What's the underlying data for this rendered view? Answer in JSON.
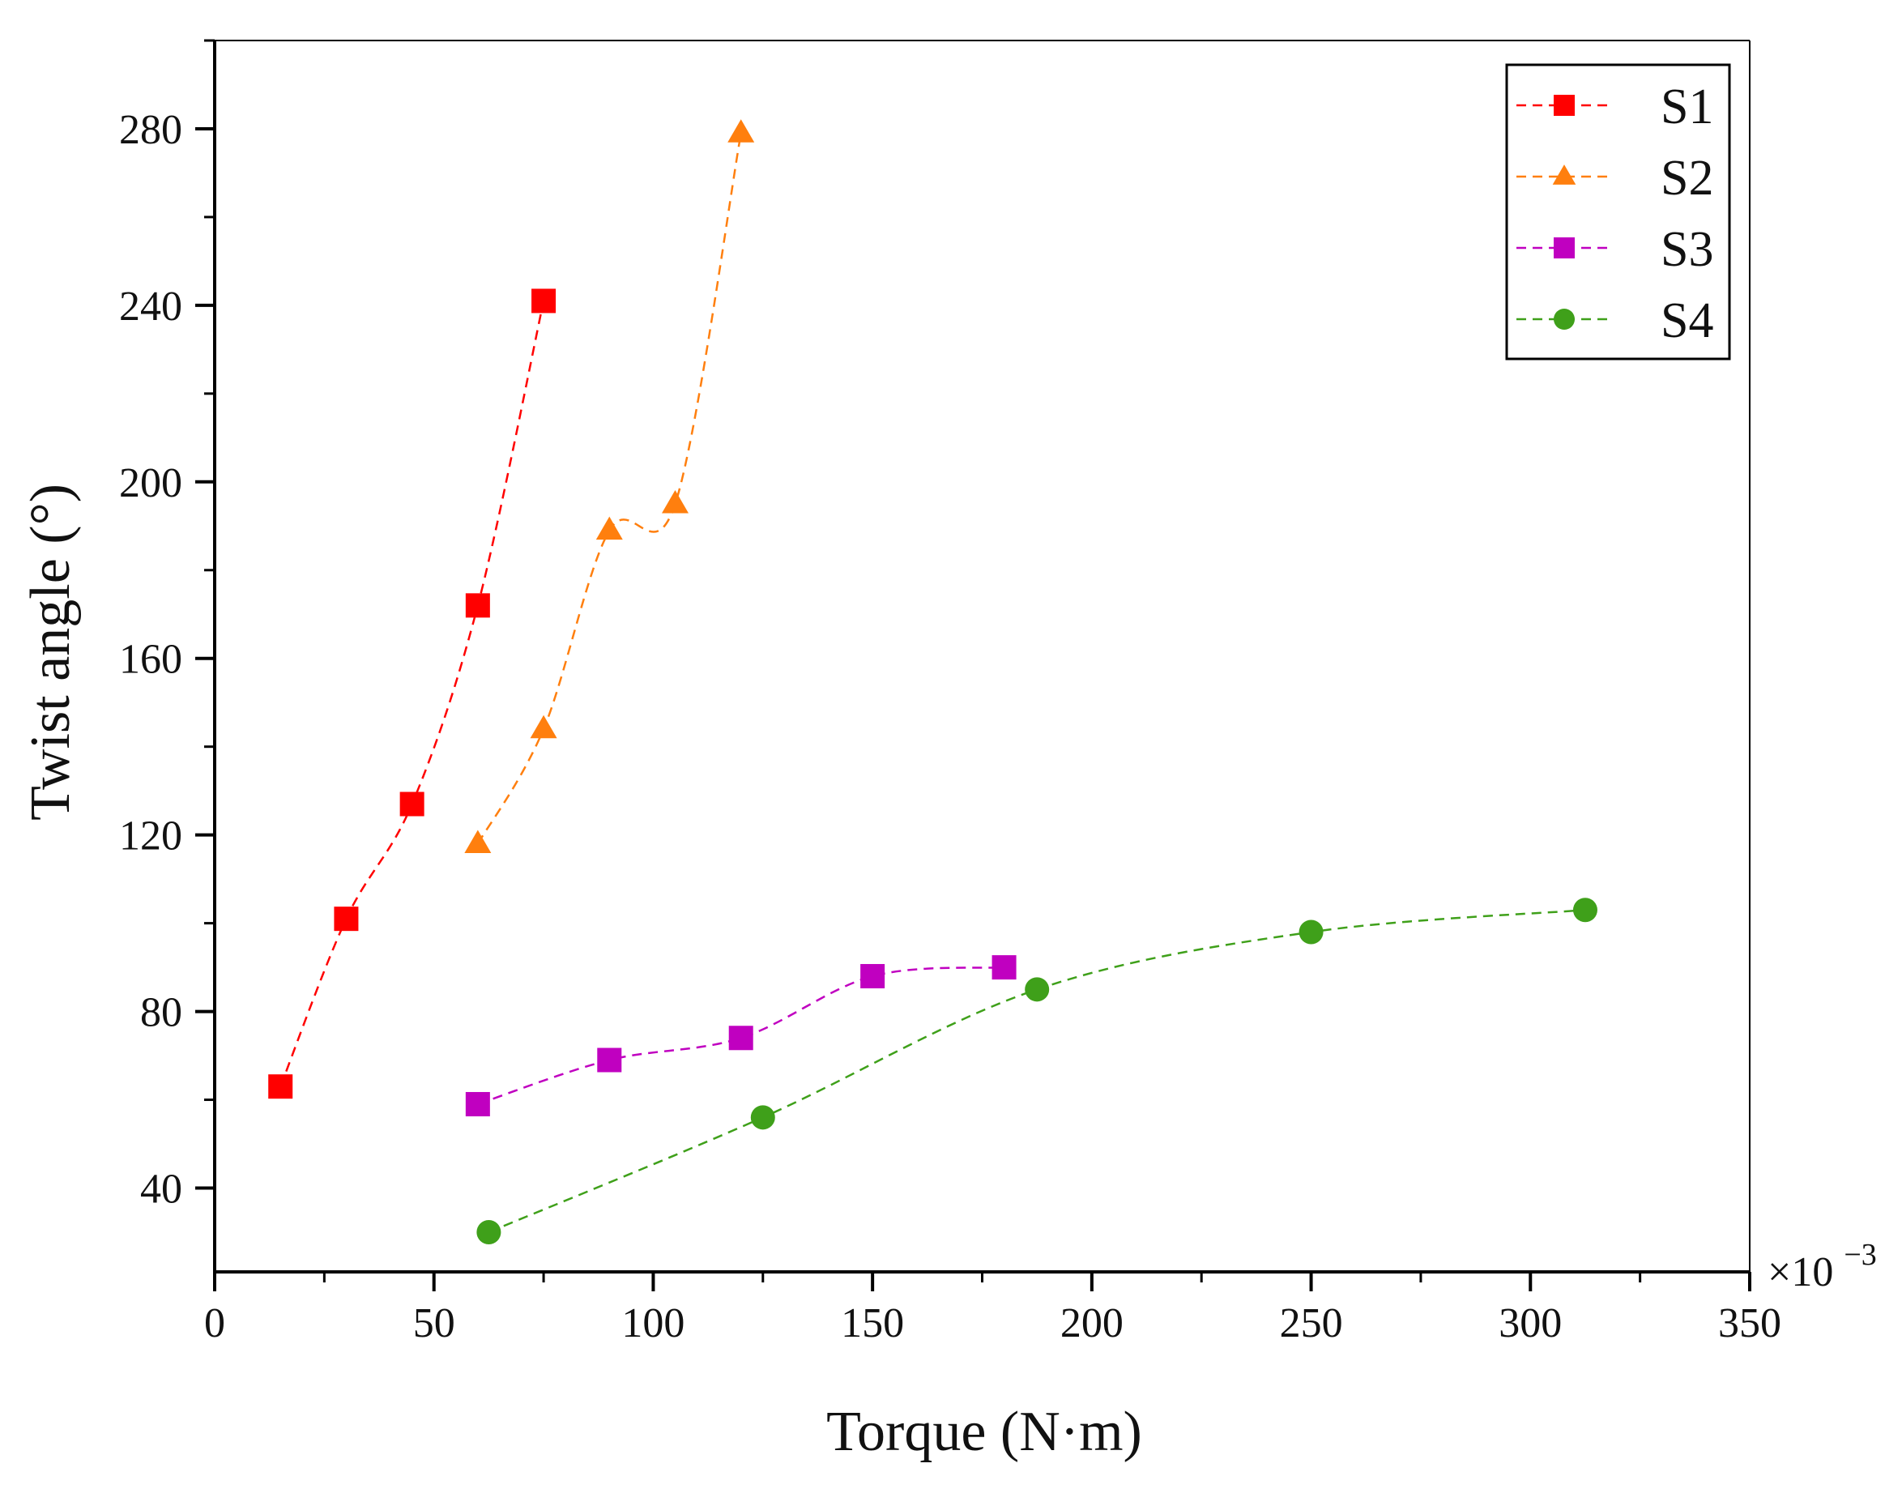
{
  "chart_data": {
    "type": "line",
    "title": "",
    "xlabel": "Torque (N·m)",
    "ylabel": "Twist angle (°)",
    "x_exponent_base": "×10",
    "x_exponent_power": "−3",
    "xlim": [
      0,
      350
    ],
    "ylim": [
      21,
      300
    ],
    "x_ticks": [
      0,
      50,
      100,
      150,
      200,
      250,
      300,
      350
    ],
    "x_tick_labels": [
      "0",
      "50",
      "100",
      "150",
      "200",
      "250",
      "300",
      "350"
    ],
    "y_ticks": [
      40,
      80,
      120,
      160,
      200,
      240,
      280
    ],
    "y_tick_labels": [
      "40",
      "80",
      "120",
      "160",
      "200",
      "240",
      "280"
    ],
    "grid": false,
    "legend_position": "top-right",
    "series": [
      {
        "name": "S1",
        "color": "#ff0000",
        "marker": "square",
        "line_style": "dashed",
        "x": [
          15,
          30,
          45,
          60,
          75
        ],
        "y": [
          63,
          101,
          127,
          172,
          241
        ]
      },
      {
        "name": "S2",
        "color": "#ff7f0e",
        "marker": "triangle",
        "line_style": "dashed",
        "x": [
          60,
          75,
          90,
          105,
          120
        ],
        "y": [
          118,
          144,
          189,
          195,
          279
        ]
      },
      {
        "name": "S3",
        "color": "#c000c0",
        "marker": "square",
        "line_style": "dashed",
        "x": [
          60,
          90,
          120,
          150,
          180
        ],
        "y": [
          59,
          69,
          74,
          88,
          90
        ]
      },
      {
        "name": "S4",
        "color": "#3fa01a",
        "marker": "circle",
        "line_style": "dashed",
        "x": [
          62.5,
          125,
          187.5,
          250,
          312.5
        ],
        "y": [
          30,
          56,
          85,
          98,
          103
        ]
      }
    ]
  }
}
